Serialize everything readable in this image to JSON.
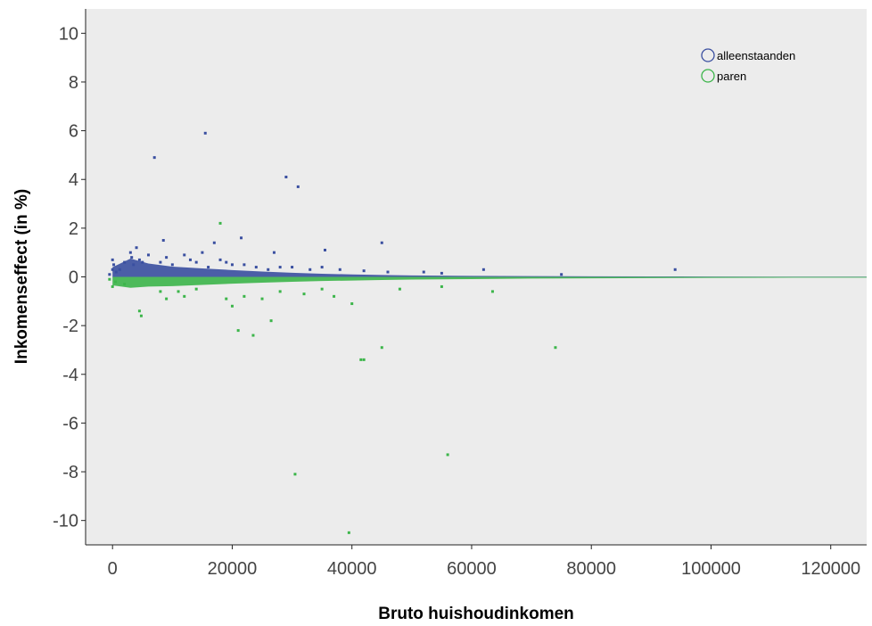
{
  "chart_data": {
    "type": "scatter",
    "xlabel": "Bruto huishoudinkomen",
    "ylabel": "Inkomenseffect (in %)",
    "xlim": [
      -4500,
      126000
    ],
    "ylim": [
      -11,
      11
    ],
    "x_ticks": [
      0,
      20000,
      40000,
      60000,
      80000,
      100000,
      120000
    ],
    "y_ticks": [
      10,
      8,
      6,
      4,
      2,
      0,
      -2,
      -4,
      -6,
      -8,
      -10
    ],
    "legend_position": "top-right",
    "plot_background": "#ececec",
    "grid": false,
    "series": [
      {
        "name": "alleenstaanden",
        "color": "#3a4fa0",
        "band": [
          [
            0,
            0.4
          ],
          [
            3000,
            0.75
          ],
          [
            6000,
            0.55
          ],
          [
            10000,
            0.42
          ],
          [
            15000,
            0.35
          ],
          [
            20000,
            0.28
          ],
          [
            25000,
            0.22
          ],
          [
            30000,
            0.17
          ],
          [
            35000,
            0.13
          ],
          [
            40000,
            0.1
          ],
          [
            45000,
            0.08
          ],
          [
            50000,
            0.06
          ],
          [
            55000,
            0.05
          ],
          [
            60000,
            0.04
          ],
          [
            70000,
            0.03
          ],
          [
            80000,
            0.025
          ],
          [
            90000,
            0.02
          ],
          [
            100000,
            0.015
          ],
          [
            110000,
            0.01
          ],
          [
            126000,
            0.01
          ]
        ],
        "points": [
          [
            -500,
            0.1
          ],
          [
            0,
            0.3
          ],
          [
            0,
            0.7
          ],
          [
            200,
            0.5
          ],
          [
            600,
            0.2
          ],
          [
            1200,
            0.3
          ],
          [
            2000,
            0.6
          ],
          [
            3000,
            1.0
          ],
          [
            3200,
            0.8
          ],
          [
            3500,
            0.5
          ],
          [
            4000,
            1.2
          ],
          [
            4500,
            0.7
          ],
          [
            5000,
            0.6
          ],
          [
            6000,
            0.9
          ],
          [
            7000,
            4.9
          ],
          [
            8000,
            0.6
          ],
          [
            8500,
            1.5
          ],
          [
            9000,
            0.8
          ],
          [
            10000,
            0.5
          ],
          [
            12000,
            0.9
          ],
          [
            13000,
            0.7
          ],
          [
            14000,
            0.6
          ],
          [
            15000,
            1.0
          ],
          [
            15500,
            5.9
          ],
          [
            16000,
            0.4
          ],
          [
            17000,
            1.4
          ],
          [
            18000,
            0.7
          ],
          [
            19000,
            0.6
          ],
          [
            20000,
            0.5
          ],
          [
            21500,
            1.6
          ],
          [
            22000,
            0.5
          ],
          [
            24000,
            0.4
          ],
          [
            26000,
            0.3
          ],
          [
            27000,
            1.0
          ],
          [
            28000,
            0.4
          ],
          [
            29000,
            4.1
          ],
          [
            30000,
            0.4
          ],
          [
            31000,
            3.7
          ],
          [
            33000,
            0.3
          ],
          [
            35000,
            0.4
          ],
          [
            35500,
            1.1
          ],
          [
            38000,
            0.3
          ],
          [
            42000,
            0.25
          ],
          [
            45000,
            1.4
          ],
          [
            46000,
            0.2
          ],
          [
            52000,
            0.2
          ],
          [
            55000,
            0.15
          ],
          [
            62000,
            0.3
          ],
          [
            75000,
            0.1
          ],
          [
            94000,
            0.3
          ]
        ]
      },
      {
        "name": "paren",
        "color": "#3cb54a",
        "band": [
          [
            0,
            -0.35
          ],
          [
            3000,
            -0.45
          ],
          [
            6000,
            -0.4
          ],
          [
            10000,
            -0.38
          ],
          [
            15000,
            -0.33
          ],
          [
            20000,
            -0.28
          ],
          [
            25000,
            -0.24
          ],
          [
            30000,
            -0.2
          ],
          [
            35000,
            -0.17
          ],
          [
            40000,
            -0.15
          ],
          [
            45000,
            -0.13
          ],
          [
            50000,
            -0.11
          ],
          [
            55000,
            -0.1
          ],
          [
            60000,
            -0.09
          ],
          [
            70000,
            -0.07
          ],
          [
            80000,
            -0.06
          ],
          [
            90000,
            -0.05
          ],
          [
            100000,
            -0.04
          ],
          [
            110000,
            -0.035
          ],
          [
            126000,
            -0.03
          ]
        ],
        "points": [
          [
            -500,
            -0.1
          ],
          [
            0,
            -0.4
          ],
          [
            500,
            -0.2
          ],
          [
            2000,
            -0.3
          ],
          [
            4500,
            -1.4
          ],
          [
            4800,
            -1.6
          ],
          [
            8000,
            -0.6
          ],
          [
            9000,
            -0.9
          ],
          [
            11000,
            -0.6
          ],
          [
            12000,
            -0.8
          ],
          [
            14000,
            -0.5
          ],
          [
            18000,
            2.2
          ],
          [
            19000,
            -0.9
          ],
          [
            20000,
            -1.2
          ],
          [
            21000,
            -2.2
          ],
          [
            22000,
            -0.8
          ],
          [
            23500,
            -2.4
          ],
          [
            25000,
            -0.9
          ],
          [
            26500,
            -1.8
          ],
          [
            28000,
            -0.6
          ],
          [
            30500,
            -8.1
          ],
          [
            32000,
            -0.7
          ],
          [
            35000,
            -0.5
          ],
          [
            37000,
            -0.8
          ],
          [
            39500,
            -10.5
          ],
          [
            40000,
            -1.1
          ],
          [
            41500,
            -3.4
          ],
          [
            42000,
            -3.4
          ],
          [
            45000,
            -2.9
          ],
          [
            48000,
            -0.5
          ],
          [
            55000,
            -0.4
          ],
          [
            56000,
            -7.3
          ],
          [
            63500,
            -0.6
          ],
          [
            74000,
            -2.9
          ]
        ]
      }
    ]
  }
}
